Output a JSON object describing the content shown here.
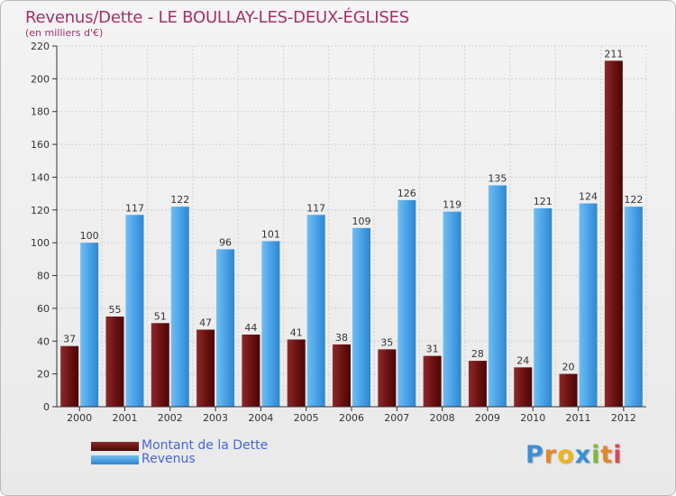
{
  "header": {
    "title": "Revenus/Dette - LE BOULLAY-LES-DEUX-ÉGLISES",
    "subtitle": "(en milliers d'€)"
  },
  "colors": {
    "title": "#a3306a",
    "dette": "#7a1c1c",
    "revenus": "#4aa3e8",
    "legend_text": "#4866d6"
  },
  "legend": {
    "dette": "Montant de la Dette",
    "revenus": "Revenus"
  },
  "logo": {
    "text": "Proxiti"
  },
  "chart_data": {
    "type": "bar",
    "title": "Revenus/Dette - LE BOULLAY-LES-DEUX-ÉGLISES",
    "subtitle": "(en milliers d'€)",
    "categories": [
      "2000",
      "2001",
      "2002",
      "2003",
      "2004",
      "2005",
      "2006",
      "2007",
      "2008",
      "2009",
      "2010",
      "2011",
      "2012"
    ],
    "series": [
      {
        "name": "Montant de la Dette",
        "values": [
          37,
          55,
          51,
          47,
          44,
          41,
          38,
          35,
          31,
          28,
          24,
          20,
          211
        ]
      },
      {
        "name": "Revenus",
        "values": [
          100,
          117,
          122,
          96,
          101,
          117,
          109,
          126,
          119,
          135,
          121,
          124,
          122
        ]
      }
    ],
    "yticks": [
      0,
      20,
      40,
      60,
      80,
      100,
      120,
      140,
      160,
      180,
      200,
      220
    ],
    "ylim": [
      0,
      220
    ],
    "grid": true,
    "legend_position": "bottom-left"
  }
}
